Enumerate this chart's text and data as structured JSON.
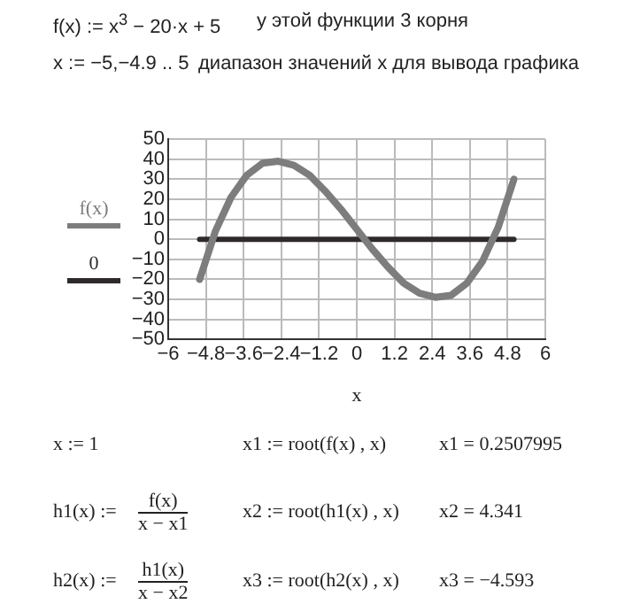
{
  "chart_data": {
    "type": "line",
    "xlabel": "x",
    "legend": "left",
    "grid": true,
    "marker": "none",
    "line_style": "solid",
    "xlim": [
      -6,
      6
    ],
    "xticks": [
      -6,
      -4.8,
      -3.6,
      -2.4,
      -1.2,
      0,
      1.2,
      2.4,
      3.6,
      4.8,
      6
    ],
    "ylim": [
      -50,
      50
    ],
    "yticks": [
      -50,
      -40,
      -30,
      -20,
      -10,
      0,
      10,
      20,
      30,
      40,
      50
    ],
    "series": [
      {
        "name": "f(x)",
        "color": "#7d7d7d",
        "x": [
          -5,
          -4.5,
          -4,
          -3.5,
          -3,
          -2.5,
          -2,
          -1.5,
          -1,
          -0.5,
          0,
          0.5,
          1,
          1.5,
          2,
          2.5,
          3,
          3.5,
          4,
          4.5,
          5
        ],
        "values": [
          -20,
          4,
          21,
          32,
          38,
          39,
          37,
          32,
          24,
          15,
          5,
          -5,
          -14,
          -22,
          -27,
          -29,
          -28,
          -22,
          -11,
          6,
          30
        ]
      },
      {
        "name": "0",
        "color": "#2e2a2a",
        "x": [
          -5,
          5
        ],
        "values": [
          0,
          0
        ]
      }
    ],
    "annotations": [
      "f(x) := x$^{3}$ − 20·x + 5",
      "у этой функции 3 корня",
      "x := −5,−4.9 .. 5",
      "диапазон значений  x для вывода графика",
      "x := 1",
      "x1 := root(f(x) , x)",
      "x1 = 0.2507995",
      "h1(x) :=",
      "f(x)",
      "x − x1",
      "x2 := root(h1(x) , x)",
      "x2 = 4.341",
      "h2(x) :=",
      "h1(x)",
      "x − x2",
      "x3 := root(h2(x) , x)",
      "x3 = −4.593"
    ]
  }
}
